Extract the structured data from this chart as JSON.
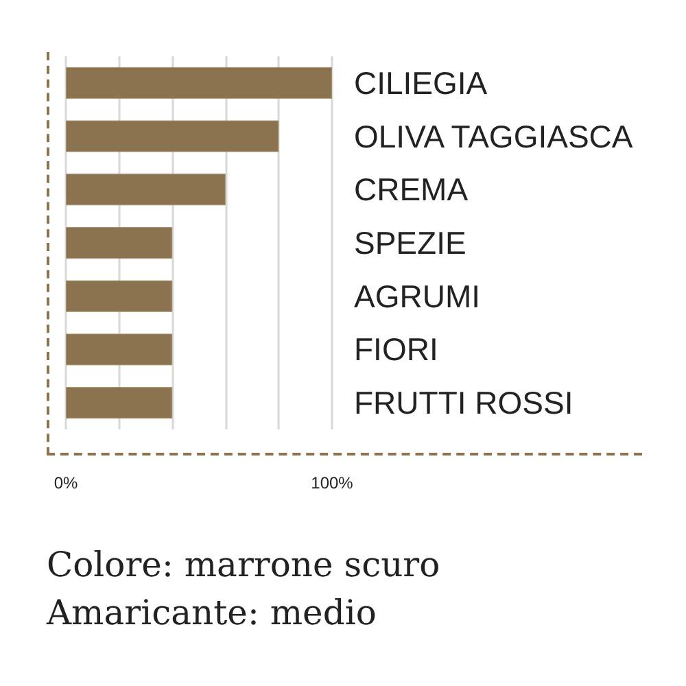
{
  "chart_data": {
    "type": "bar",
    "orientation": "horizontal",
    "categories": [
      "CILIEGIA",
      "OLIVA TAGGIASCA",
      "CREMA",
      "SPEZIE",
      "AGRUMI",
      "FIORI",
      "FRUTTI ROSSI"
    ],
    "values": [
      100,
      80,
      60,
      40,
      40,
      40,
      40
    ],
    "color": "#8b7350",
    "xlim": [
      0,
      100
    ],
    "xticks": [
      {
        "value": 0,
        "label": "0%"
      },
      {
        "value": 20,
        "label": null
      },
      {
        "value": 40,
        "label": null
      },
      {
        "value": 60,
        "label": null
      },
      {
        "value": 80,
        "label": null
      },
      {
        "value": 100,
        "label": "100%"
      }
    ],
    "grid": "x",
    "annotations": [
      "Colore: marrone scuro",
      "Amaricante: medio"
    ]
  }
}
